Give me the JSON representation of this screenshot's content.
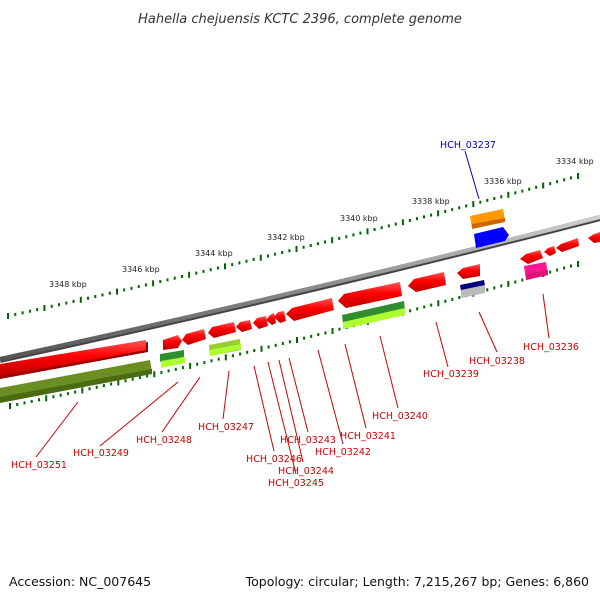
{
  "title": "Hahella chejuensis KCTC 2396, complete genome",
  "footer": {
    "accession": "Accession: NC_007645",
    "summary": "Topology: circular; Length: 7,215,267 bp; Genes: 6,860"
  },
  "scale": {
    "labels": [
      "3334 kbp",
      "3336 kbp",
      "3338 kbp",
      "3340 kbp",
      "3342 kbp",
      "3344 kbp",
      "3346 kbp",
      "3348 kbp"
    ]
  },
  "genes": [
    {
      "id": "HCH_03236",
      "color": "#cc0000"
    },
    {
      "id": "HCH_03237",
      "color": "#0000cc"
    },
    {
      "id": "HCH_03238",
      "color": "#cc0000"
    },
    {
      "id": "HCH_03239",
      "color": "#cc0000"
    },
    {
      "id": "HCH_03240",
      "color": "#cc0000"
    },
    {
      "id": "HCH_03241",
      "color": "#cc0000"
    },
    {
      "id": "HCH_03242",
      "color": "#cc0000"
    },
    {
      "id": "HCH_03243",
      "color": "#cc0000"
    },
    {
      "id": "HCH_03244",
      "color": "#cc0000"
    },
    {
      "id": "HCH_03245",
      "color": "#cc0000"
    },
    {
      "id": "HCH_03246",
      "color": "#cc0000"
    },
    {
      "id": "HCH_03247",
      "color": "#cc0000"
    },
    {
      "id": "HCH_03248",
      "color": "#cc0000"
    },
    {
      "id": "HCH_03249",
      "color": "#cc0000"
    },
    {
      "id": "HCH_03251",
      "color": "#cc0000"
    }
  ],
  "colors": {
    "backbone": "#8a8a8a",
    "cds": "#ff0000",
    "dark_green": "#2f8f2f",
    "olive": "#6b8e23",
    "lime": "#adff2f",
    "orange": "#ff9900",
    "blue": "#0000ff",
    "navy": "#000080",
    "magenta": "#ff1493",
    "tick": "#006400"
  }
}
